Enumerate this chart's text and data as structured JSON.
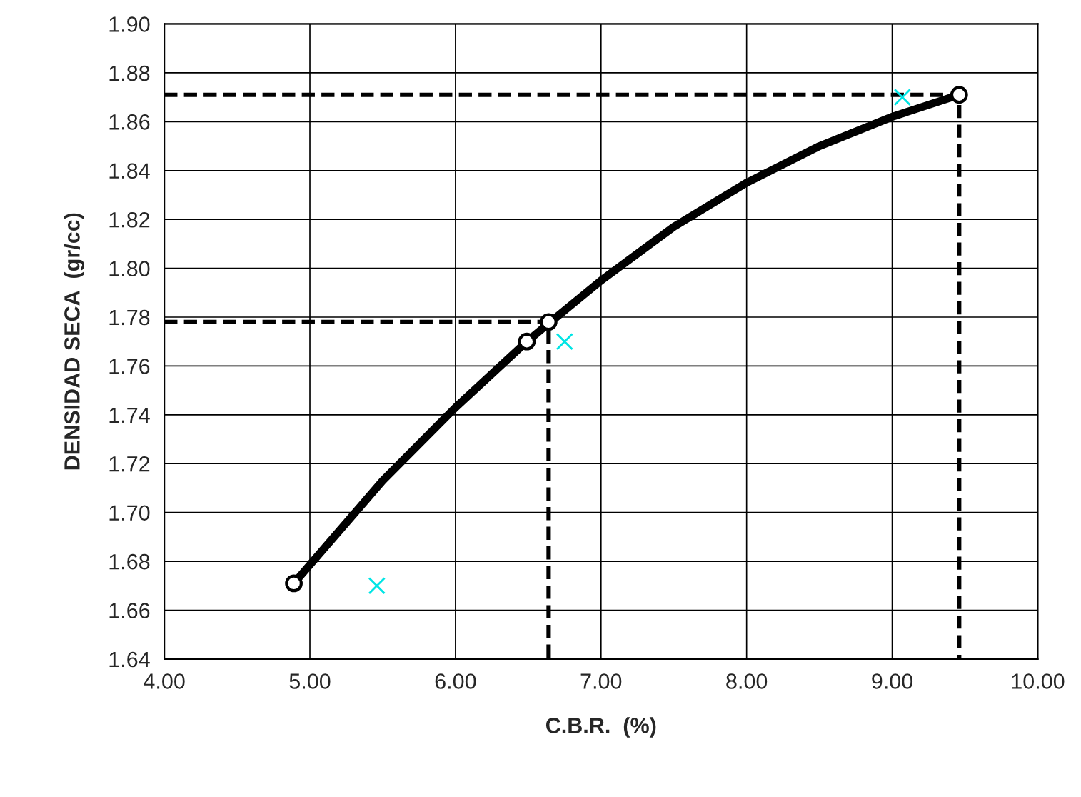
{
  "chart_data": {
    "type": "line",
    "xlabel": "C.B.R.  (%)",
    "ylabel": "DENSIDAD SECA  (gr/cc)",
    "xlim": [
      4.0,
      10.0
    ],
    "xticks": [
      {
        "value": 4,
        "label": "4.00"
      },
      {
        "value": 5,
        "label": "5.00"
      },
      {
        "value": 6,
        "label": "6.00"
      },
      {
        "value": 7,
        "label": "7.00"
      },
      {
        "value": 8,
        "label": "8.00"
      },
      {
        "value": 9,
        "label": "9.00"
      },
      {
        "value": 10,
        "label": "10.00"
      }
    ],
    "ylim": [
      1.64,
      1.9
    ],
    "yticks": [
      {
        "value": 1.64,
        "label": "1.64"
      },
      {
        "value": 1.66,
        "label": "1.66"
      },
      {
        "value": 1.68,
        "label": "1.68"
      },
      {
        "value": 1.7,
        "label": "1.70"
      },
      {
        "value": 1.72,
        "label": "1.72"
      },
      {
        "value": 1.74,
        "label": "1.74"
      },
      {
        "value": 1.76,
        "label": "1.76"
      },
      {
        "value": 1.78,
        "label": "1.78"
      },
      {
        "value": 1.8,
        "label": "1.80"
      },
      {
        "value": 1.82,
        "label": "1.82"
      },
      {
        "value": 1.84,
        "label": "1.84"
      },
      {
        "value": 1.86,
        "label": "1.86"
      },
      {
        "value": 1.88,
        "label": "1.88"
      },
      {
        "value": 1.9,
        "label": "1.90"
      }
    ],
    "grid": true,
    "legend": false,
    "series": [
      {
        "color": "#000000",
        "marker": "none",
        "line_style": "solid",
        "x": [
          4.89,
          5.5,
          6.0,
          6.49,
          7.0,
          7.5,
          8.0,
          8.5,
          9.0,
          9.46
        ],
        "values": [
          1.671,
          1.713,
          1.743,
          1.77,
          1.795,
          1.817,
          1.835,
          1.85,
          1.862,
          1.871
        ]
      },
      {
        "type": "scatter",
        "color": "#000000",
        "marker": "circle",
        "x": [
          4.89,
          6.49,
          6.64,
          9.46
        ],
        "values": [
          1.671,
          1.77,
          1.778,
          1.871
        ]
      },
      {
        "type": "scatter",
        "color": "#00e5e5",
        "marker": "cross",
        "x": [
          5.46,
          6.75,
          9.07
        ],
        "values": [
          1.67,
          1.77,
          1.87
        ]
      },
      {
        "type": "line",
        "color": "#000000",
        "marker": "none",
        "line_style": "dashed",
        "x": [
          4.0,
          6.64,
          6.64
        ],
        "values": [
          1.778,
          1.778,
          1.64
        ]
      },
      {
        "type": "line",
        "color": "#000000",
        "marker": "none",
        "line_style": "dashed",
        "x": [
          4.0,
          9.46,
          9.46
        ],
        "values": [
          1.871,
          1.871,
          1.64
        ]
      }
    ]
  }
}
